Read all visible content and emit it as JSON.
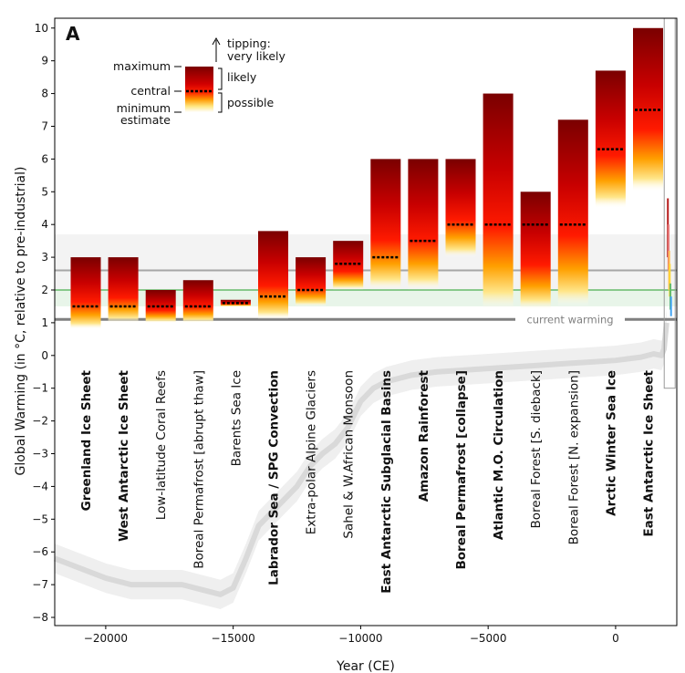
{
  "chart_data": {
    "type": "bar",
    "panel_label": "A",
    "xlabel": "Year (CE)",
    "ylabel": "Global Warming (in °C, relative to pre-industrial)",
    "xlim": [
      -22000,
      2400
    ],
    "ylim": [
      -8.25,
      10.3
    ],
    "xticks": [
      -20000,
      -15000,
      -10000,
      -5000,
      0
    ],
    "xtick_labels": [
      "−20000",
      "−15000",
      "−10000",
      "−5000",
      "0"
    ],
    "yticks": [
      -8,
      -7,
      -6,
      -5,
      -4,
      -3,
      -2,
      -1,
      0,
      1,
      2,
      3,
      4,
      5,
      6,
      7,
      8,
      9,
      10
    ],
    "ytick_labels": [
      "−8",
      "−7",
      "−6",
      "−5",
      "−4",
      "−3",
      "−2",
      "−1",
      "0",
      "1",
      "2",
      "3",
      "4",
      "5",
      "6",
      "7",
      "8",
      "9",
      "10"
    ],
    "grid": false,
    "elements": [
      {
        "name": "Greenland Ice Sheet",
        "bold": true,
        "minimum": 0.8,
        "central": 1.5,
        "maximum": 3.0
      },
      {
        "name": "West Antarctic Ice Sheet",
        "bold": true,
        "minimum": 1.0,
        "central": 1.5,
        "maximum": 3.0
      },
      {
        "name": "Low-latitude Coral Reefs",
        "bold": false,
        "minimum": 1.0,
        "central": 1.5,
        "maximum": 2.0
      },
      {
        "name": "Boreal Permafrost [abrupt thaw]",
        "bold": false,
        "minimum": 1.0,
        "central": 1.5,
        "maximum": 2.3
      },
      {
        "name": "Barents Sea Ice",
        "bold": false,
        "minimum": 1.5,
        "central": 1.6,
        "maximum": 1.7
      },
      {
        "name": "Labrador Sea / SPG Convection",
        "bold": true,
        "minimum": 1.1,
        "central": 1.8,
        "maximum": 3.8
      },
      {
        "name": "Extra-polar Alpine Glaciers",
        "bold": false,
        "minimum": 1.5,
        "central": 2.0,
        "maximum": 3.0
      },
      {
        "name": "Sahel & W.African Monsoon",
        "bold": false,
        "minimum": 2.0,
        "central": 2.8,
        "maximum": 3.5
      },
      {
        "name": "East Antarctic Subglacial Basins",
        "bold": true,
        "minimum": 2.0,
        "central": 3.0,
        "maximum": 6.0
      },
      {
        "name": "Amazon Rainforest",
        "bold": true,
        "minimum": 2.0,
        "central": 3.5,
        "maximum": 6.0
      },
      {
        "name": "Boreal Permafrost [collapse]",
        "bold": true,
        "minimum": 3.0,
        "central": 4.0,
        "maximum": 6.0
      },
      {
        "name": "Atlantic M.O. Circulation",
        "bold": true,
        "minimum": 1.4,
        "central": 4.0,
        "maximum": 8.0
      },
      {
        "name": "Boreal Forest [S. dieback]",
        "bold": false,
        "minimum": 1.4,
        "central": 4.0,
        "maximum": 5.0
      },
      {
        "name": "Boreal Forest [N. expansion]",
        "bold": false,
        "minimum": 1.5,
        "central": 4.0,
        "maximum": 7.2
      },
      {
        "name": "Arctic Winter Sea Ice",
        "bold": true,
        "minimum": 4.5,
        "central": 6.3,
        "maximum": 8.7
      },
      {
        "name": "East Antarctic Ice Sheet",
        "bold": true,
        "minimum": 5.0,
        "central": 7.5,
        "maximum": 10.0
      }
    ],
    "reference_lines": [
      {
        "y": 1.1,
        "label": "current warming",
        "color": "#7f7f7f"
      },
      {
        "y": 2.6,
        "label": "",
        "color": "#a6a6a6"
      },
      {
        "y": 2.0,
        "label": "",
        "color": "#4caf50"
      }
    ],
    "reference_bands": [
      {
        "from": 1.5,
        "to": 2.0,
        "color": "#e8f5e9"
      },
      {
        "from": 2.0,
        "to": 3.7,
        "color": "#f3f3f3"
      }
    ],
    "temperature_history": {
      "x": [
        -22000,
        -21000,
        -20000,
        -19000,
        -18000,
        -17000,
        -16000,
        -15500,
        -15000,
        -14500,
        -14000,
        -13500,
        -13000,
        -12500,
        -12000,
        -11500,
        -11000,
        -10500,
        -10000,
        -9500,
        -9000,
        -8500,
        -8000,
        -7000,
        -6000,
        -5000,
        -4000,
        -3000,
        -2000,
        -1000,
        0,
        1000,
        1500,
        1800,
        1900,
        2000
      ],
      "y": [
        -6.2,
        -6.5,
        -6.8,
        -7.0,
        -7.0,
        -7.0,
        -7.2,
        -7.3,
        -7.1,
        -6.2,
        -5.2,
        -4.8,
        -4.4,
        -4.0,
        -3.4,
        -3.0,
        -2.7,
        -2.2,
        -1.4,
        -1.0,
        -0.8,
        -0.7,
        -0.6,
        -0.5,
        -0.45,
        -0.4,
        -0.35,
        -0.3,
        -0.25,
        -0.2,
        -0.15,
        -0.05,
        0.05,
        0.0,
        0.2,
        1.0
      ],
      "uncertainty": 0.45,
      "color": "#d9d9d9"
    },
    "legend_box": {
      "labels": {
        "maximum": "maximum",
        "central": "central",
        "minimum": "minimum",
        "estimate": "estimate",
        "tipping": "tipping:",
        "very_likely": "very likely",
        "likely": "likely",
        "possible": "possible"
      }
    },
    "inset_projection_colors": [
      "#b71c1c",
      "#e57373",
      "#ffb74d",
      "#fdd835",
      "#66bb6a",
      "#42a5f5"
    ]
  }
}
